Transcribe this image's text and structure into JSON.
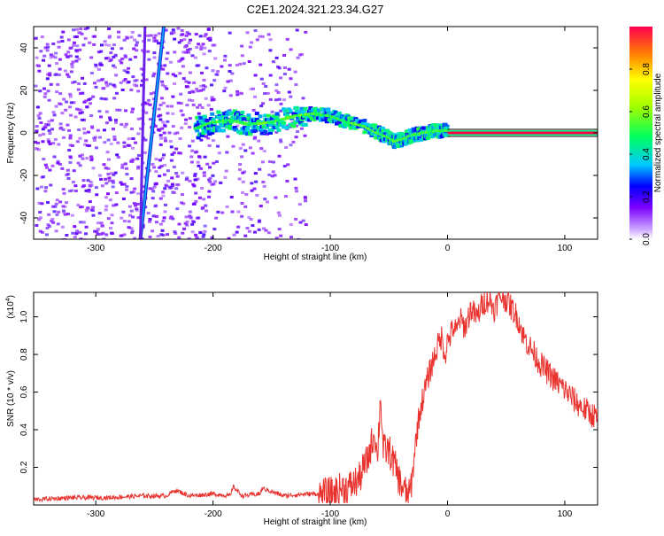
{
  "title": "C2E1.2024.321.23.34.G27",
  "colors": {
    "snr_line": "#e8322e",
    "axis": "#000000"
  },
  "chart_data": [
    {
      "type": "heatmap",
      "title": "C2E1.2024.321.23.34.G27",
      "xlabel": "Height of straight line (km)",
      "ylabel": "Frequency (Hz)",
      "xlim": [
        -353,
        128
      ],
      "ylim": [
        -50,
        50
      ],
      "xticks": [
        -300,
        -200,
        -100,
        0,
        100
      ],
      "xtick_labels": [
        "-300",
        "-200",
        "-100",
        "0",
        "100"
      ],
      "yticks": [
        -40,
        -20,
        0,
        20,
        40
      ],
      "ytick_labels": [
        "-40",
        "-20",
        "0",
        "20",
        "40"
      ],
      "colorbar": {
        "label": "Normalized spectral amplitude",
        "range": [
          0,
          1
        ],
        "ticks": [
          0,
          0.2,
          0.4,
          0.6,
          0.8
        ],
        "tick_labels": [
          "0.0",
          "0.2",
          "0.4",
          "0.6",
          "0.8"
        ]
      },
      "features": [
        {
          "name": "noise",
          "x": [
            -353,
            -122
          ],
          "y": [
            -50,
            50
          ],
          "amplitude": 0.1
        },
        {
          "name": "diagonal-streak",
          "x": [
            -262,
            -242
          ],
          "y": [
            -50,
            50
          ],
          "amplitude": 0.25
        },
        {
          "name": "diagonal-streak-faint",
          "x": [
            -262,
            -258
          ],
          "y": [
            -50,
            50
          ],
          "amplitude": 0.15
        },
        {
          "name": "signal-track",
          "x": [
            -215,
            -200,
            -185,
            -170,
            -150,
            -130,
            -115,
            -100,
            -85,
            -70,
            -60,
            -50,
            -45,
            -38,
            -30,
            -20,
            -10,
            0
          ],
          "y": [
            2,
            5,
            6,
            4,
            5,
            8,
            9,
            8,
            5,
            3,
            0,
            -2,
            -4,
            -3,
            -1,
            0,
            1,
            1
          ],
          "amplitude": 0.45
        },
        {
          "name": "steady-carrier",
          "x": [
            0,
            128
          ],
          "y": [
            0,
            0
          ],
          "amplitude": 1.0
        }
      ]
    },
    {
      "type": "line",
      "xlabel": "Height of straight line (km)",
      "ylabel": "SNR (10 * v/v)",
      "y_multiplier": "(x10⁴)",
      "y_multiplier_base": "(x10",
      "y_multiplier_exp": "4",
      "xlim": [
        -353,
        128
      ],
      "ylim": [
        0,
        1.13
      ],
      "xticks": [
        -300,
        -200,
        -100,
        0,
        100
      ],
      "xtick_labels": [
        "-300",
        "-200",
        "-100",
        "0",
        "100"
      ],
      "yticks": [
        0.2,
        0.4,
        0.6,
        0.8,
        1.0
      ],
      "ytick_labels": [
        "0.2",
        "0.4",
        "0.6",
        "0.8",
        "1.0"
      ],
      "series": [
        {
          "x": [
            -353,
            -320,
            -290,
            -260,
            -240,
            -232,
            -220,
            -200,
            -185,
            -183,
            -175,
            -160,
            -158,
            -140,
            -120,
            -110,
            -100,
            -95,
            -90,
            -85,
            -80,
            -75,
            -72,
            -68,
            -65,
            -62,
            -60,
            -57,
            -55,
            -50,
            -45,
            -40,
            -36,
            -33,
            -30,
            -28,
            -25,
            -22,
            -20,
            -18,
            -15,
            -12,
            -10,
            -8,
            -5,
            -2,
            0,
            2,
            5,
            8,
            10,
            15,
            20,
            25,
            30,
            35,
            40,
            45,
            50,
            55,
            60,
            65,
            70,
            75,
            80,
            90,
            100,
            110,
            120,
            128
          ],
          "y": [
            0.03,
            0.04,
            0.04,
            0.05,
            0.05,
            0.08,
            0.05,
            0.06,
            0.05,
            0.1,
            0.05,
            0.06,
            0.09,
            0.05,
            0.06,
            0.06,
            0.07,
            0.08,
            0.1,
            0.1,
            0.12,
            0.15,
            0.2,
            0.25,
            0.33,
            0.4,
            0.25,
            0.6,
            0.3,
            0.3,
            0.22,
            0.12,
            0.08,
            0.05,
            0.15,
            0.3,
            0.45,
            0.55,
            0.6,
            0.65,
            0.72,
            0.78,
            0.82,
            0.86,
            0.9,
            0.8,
            0.88,
            0.9,
            0.95,
            0.92,
            1.0,
            0.95,
            1.05,
            1.0,
            1.08,
            1.1,
            1.05,
            1.12,
            1.1,
            1.05,
            1.0,
            0.9,
            0.85,
            0.8,
            0.75,
            0.68,
            0.62,
            0.55,
            0.5,
            0.47
          ]
        }
      ]
    }
  ]
}
